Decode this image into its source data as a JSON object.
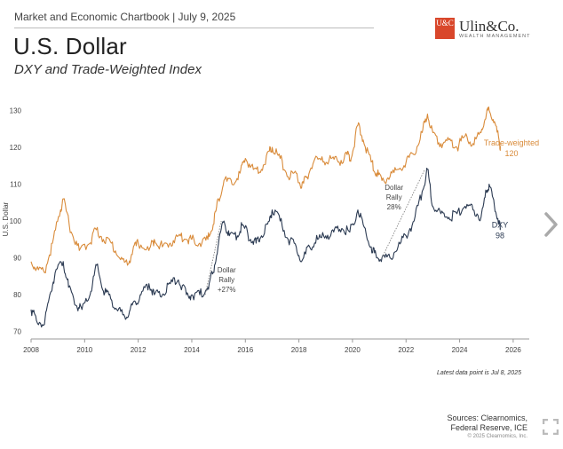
{
  "header": {
    "subtitle_line": "Market and Economic Chartbook | July 9, 2025",
    "title": "U.S. Dollar",
    "chart_subtitle": "DXY and Trade-Weighted Index"
  },
  "logo": {
    "mark": "U&C",
    "name": "Ulin&Co.",
    "tagline": "WEALTH MANAGEMENT"
  },
  "footnote": "Latest data point is Jul 8, 2025",
  "sources": {
    "line1": "Sources: Clearnomics,",
    "line2": "Federal Reserve, ICE"
  },
  "copyright": "© 2025 Clearnomics, Inc.",
  "colors": {
    "trade_weighted": "#d98b3a",
    "dxy": "#2b3a52",
    "axis": "#999999"
  },
  "icons": {
    "nav": "chevron-right-icon",
    "expand": "expand-icon"
  },
  "chart_data": {
    "type": "line",
    "ylabel": "U.S. Dollar",
    "ylim": [
      68,
      133
    ],
    "xlim": [
      2008,
      2026.6
    ],
    "yticks": [
      70,
      80,
      90,
      100,
      110,
      120,
      130
    ],
    "xticks": [
      2008,
      2010,
      2012,
      2014,
      2016,
      2018,
      2020,
      2022,
      2024,
      2026
    ],
    "series": [
      {
        "name": "Trade-weighted",
        "end_label": "Trade-weighted",
        "end_value": "120",
        "points": [
          [
            2008.0,
            89
          ],
          [
            2008.2,
            87
          ],
          [
            2008.5,
            86
          ],
          [
            2008.8,
            94
          ],
          [
            2009.1,
            103
          ],
          [
            2009.2,
            106
          ],
          [
            2009.5,
            97
          ],
          [
            2009.8,
            92
          ],
          [
            2010.2,
            94
          ],
          [
            2010.4,
            98
          ],
          [
            2010.7,
            95
          ],
          [
            2011.0,
            94
          ],
          [
            2011.3,
            90
          ],
          [
            2011.6,
            88
          ],
          [
            2011.8,
            92
          ],
          [
            2012.0,
            94
          ],
          [
            2012.4,
            92
          ],
          [
            2012.6,
            95
          ],
          [
            2012.9,
            93
          ],
          [
            2013.2,
            94
          ],
          [
            2013.5,
            96
          ],
          [
            2013.8,
            95
          ],
          [
            2014.0,
            95
          ],
          [
            2014.3,
            94
          ],
          [
            2014.6,
            95
          ],
          [
            2014.8,
            99
          ],
          [
            2015.0,
            106
          ],
          [
            2015.2,
            111
          ],
          [
            2015.5,
            110
          ],
          [
            2015.8,
            113
          ],
          [
            2016.0,
            117
          ],
          [
            2016.3,
            114
          ],
          [
            2016.6,
            114
          ],
          [
            2016.9,
            119
          ],
          [
            2017.0,
            120
          ],
          [
            2017.3,
            117
          ],
          [
            2017.6,
            112
          ],
          [
            2017.9,
            113
          ],
          [
            2018.1,
            109
          ],
          [
            2018.3,
            112
          ],
          [
            2018.6,
            117
          ],
          [
            2018.9,
            116
          ],
          [
            2019.2,
            117
          ],
          [
            2019.5,
            116
          ],
          [
            2019.8,
            118
          ],
          [
            2019.95,
            117
          ],
          [
            2020.2,
            126
          ],
          [
            2020.4,
            122
          ],
          [
            2020.7,
            116
          ],
          [
            2020.9,
            113
          ],
          [
            2021.1,
            111
          ],
          [
            2021.4,
            112
          ],
          [
            2021.7,
            114
          ],
          [
            2022.0,
            116
          ],
          [
            2022.3,
            118
          ],
          [
            2022.6,
            124
          ],
          [
            2022.8,
            129
          ],
          [
            2023.0,
            124
          ],
          [
            2023.3,
            121
          ],
          [
            2023.6,
            122
          ],
          [
            2023.9,
            120
          ],
          [
            2024.2,
            123
          ],
          [
            2024.5,
            121
          ],
          [
            2024.8,
            124
          ],
          [
            2025.0,
            129
          ],
          [
            2025.1,
            130
          ],
          [
            2025.3,
            127
          ],
          [
            2025.5,
            121
          ],
          [
            2025.52,
            120
          ]
        ]
      },
      {
        "name": "DXY",
        "end_label": "DXY",
        "end_value": "98",
        "points": [
          [
            2008.0,
            76
          ],
          [
            2008.2,
            73
          ],
          [
            2008.5,
            72
          ],
          [
            2008.7,
            80
          ],
          [
            2008.9,
            86
          ],
          [
            2009.2,
            89
          ],
          [
            2009.4,
            82
          ],
          [
            2009.7,
            77
          ],
          [
            2009.9,
            76
          ],
          [
            2010.2,
            80
          ],
          [
            2010.45,
            88
          ],
          [
            2010.7,
            81
          ],
          [
            2010.9,
            80
          ],
          [
            2011.2,
            76
          ],
          [
            2011.5,
            74
          ],
          [
            2011.7,
            76
          ],
          [
            2011.9,
            78
          ],
          [
            2012.1,
            80
          ],
          [
            2012.4,
            83
          ],
          [
            2012.6,
            80
          ],
          [
            2012.9,
            80
          ],
          [
            2013.2,
            83
          ],
          [
            2013.5,
            84
          ],
          [
            2013.8,
            80
          ],
          [
            2014.0,
            80
          ],
          [
            2014.3,
            80
          ],
          [
            2014.6,
            82
          ],
          [
            2014.8,
            86
          ],
          [
            2015.0,
            94
          ],
          [
            2015.2,
            100
          ],
          [
            2015.4,
            96
          ],
          [
            2015.7,
            96
          ],
          [
            2015.9,
            99
          ],
          [
            2016.2,
            95
          ],
          [
            2016.4,
            94
          ],
          [
            2016.6,
            96
          ],
          [
            2016.9,
            100
          ],
          [
            2017.0,
            103
          ],
          [
            2017.3,
            100
          ],
          [
            2017.6,
            95
          ],
          [
            2017.9,
            93
          ],
          [
            2018.1,
            89
          ],
          [
            2018.4,
            93
          ],
          [
            2018.7,
            95
          ],
          [
            2019.0,
            96
          ],
          [
            2019.3,
            97
          ],
          [
            2019.6,
            98
          ],
          [
            2019.9,
            97
          ],
          [
            2020.2,
            103
          ],
          [
            2020.4,
            99
          ],
          [
            2020.7,
            93
          ],
          [
            2020.9,
            90
          ],
          [
            2021.1,
            90
          ],
          [
            2021.4,
            90
          ],
          [
            2021.7,
            93
          ],
          [
            2022.0,
            96
          ],
          [
            2022.3,
            100
          ],
          [
            2022.6,
            108
          ],
          [
            2022.8,
            114
          ],
          [
            2023.0,
            104
          ],
          [
            2023.3,
            102
          ],
          [
            2023.6,
            101
          ],
          [
            2023.9,
            102
          ],
          [
            2024.2,
            104
          ],
          [
            2024.5,
            103
          ],
          [
            2024.8,
            101
          ],
          [
            2025.0,
            108
          ],
          [
            2025.1,
            110
          ],
          [
            2025.3,
            104
          ],
          [
            2025.5,
            99
          ],
          [
            2025.52,
            98
          ]
        ]
      }
    ],
    "annotations": [
      {
        "lines": [
          "Dollar",
          "Rally",
          "+27%"
        ],
        "x": 2015.3,
        "y": 86
      },
      {
        "lines": [
          "Dollar",
          "Rally",
          "28%"
        ],
        "x": 2021.55,
        "y": 108.5
      }
    ],
    "rally_lines": [
      {
        "from": [
          2014.5,
          80
        ],
        "to": [
          2015.1,
          100
        ]
      },
      {
        "from": [
          2021.1,
          90
        ],
        "to": [
          2022.7,
          114
        ]
      }
    ]
  }
}
